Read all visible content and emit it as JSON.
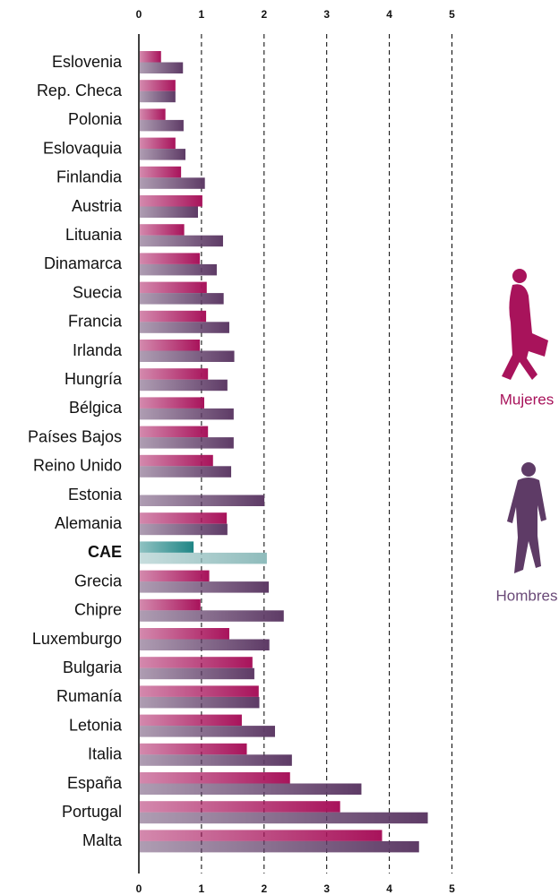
{
  "chart_data": {
    "type": "hbar",
    "categories": [
      "Eslovenia",
      "Rep. Checa",
      "Polonia",
      "Eslovaquia",
      "Finlandia",
      "Austria",
      "Lituania",
      "Dinamarca",
      "Suecia",
      "Francia",
      "Irlanda",
      "Hungría",
      "Bélgica",
      "Países Bajos",
      "Reino Unido",
      "Estonia",
      "Alemania",
      "CAE",
      "Grecia",
      "Chipre",
      "Luxemburgo",
      "Bulgaria",
      "Rumanía",
      "Letonia",
      "Italia",
      "España",
      "Portugal",
      "Malta"
    ],
    "series": [
      {
        "name": "Mujeres",
        "color": "#a8135b",
        "highlight_color": "#1f8585",
        "values": [
          0.34,
          0.57,
          0.41,
          0.57,
          0.66,
          1.0,
          0.71,
          0.96,
          1.07,
          1.06,
          0.96,
          1.09,
          1.03,
          1.09,
          1.17,
          null,
          1.39,
          0.86,
          1.11,
          0.97,
          1.43,
          1.8,
          1.9,
          1.63,
          1.71,
          2.4,
          3.2,
          3.87
        ]
      },
      {
        "name": "Hombres",
        "color": "#5e3b66",
        "highlight_color": "#8fbcbc",
        "values": [
          0.69,
          0.57,
          0.7,
          0.73,
          1.04,
          0.93,
          1.33,
          1.23,
          1.34,
          1.43,
          1.51,
          1.4,
          1.5,
          1.5,
          1.46,
          1.99,
          1.4,
          2.03,
          2.06,
          2.3,
          2.07,
          1.83,
          1.91,
          2.16,
          2.43,
          3.54,
          4.6,
          4.46
        ]
      }
    ],
    "highlight_index": 17,
    "xlim": [
      0,
      5
    ],
    "xticks": [
      0,
      1,
      2,
      3,
      4,
      5
    ],
    "grid": true
  }
}
